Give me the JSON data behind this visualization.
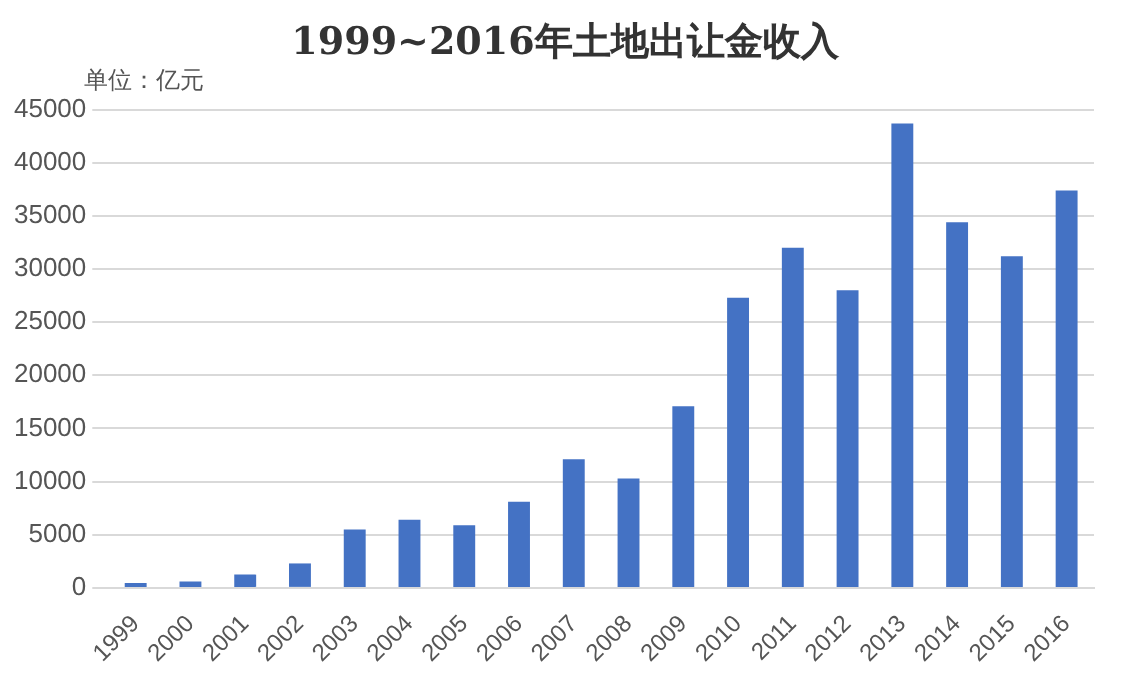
{
  "chart_data": {
    "type": "bar",
    "title": "1999~2016年土地出让金收入",
    "annotations": [
      "单位：亿元"
    ],
    "categories": [
      "1999",
      "2000",
      "2001",
      "2002",
      "2003",
      "2004",
      "2005",
      "2006",
      "2007",
      "2008",
      "2009",
      "2010",
      "2011",
      "2012",
      "2013",
      "2014",
      "2015",
      "2016"
    ],
    "values": [
      460,
      600,
      1250,
      2300,
      5500,
      6400,
      5900,
      8100,
      12100,
      10300,
      17100,
      27300,
      32000,
      28000,
      43700,
      34400,
      31200,
      37400
    ],
    "color": "#4472c4",
    "ylim": [
      0,
      45000
    ],
    "yticks": [
      0,
      5000,
      10000,
      15000,
      20000,
      25000,
      30000,
      35000,
      40000,
      45000
    ],
    "grid": "y"
  }
}
